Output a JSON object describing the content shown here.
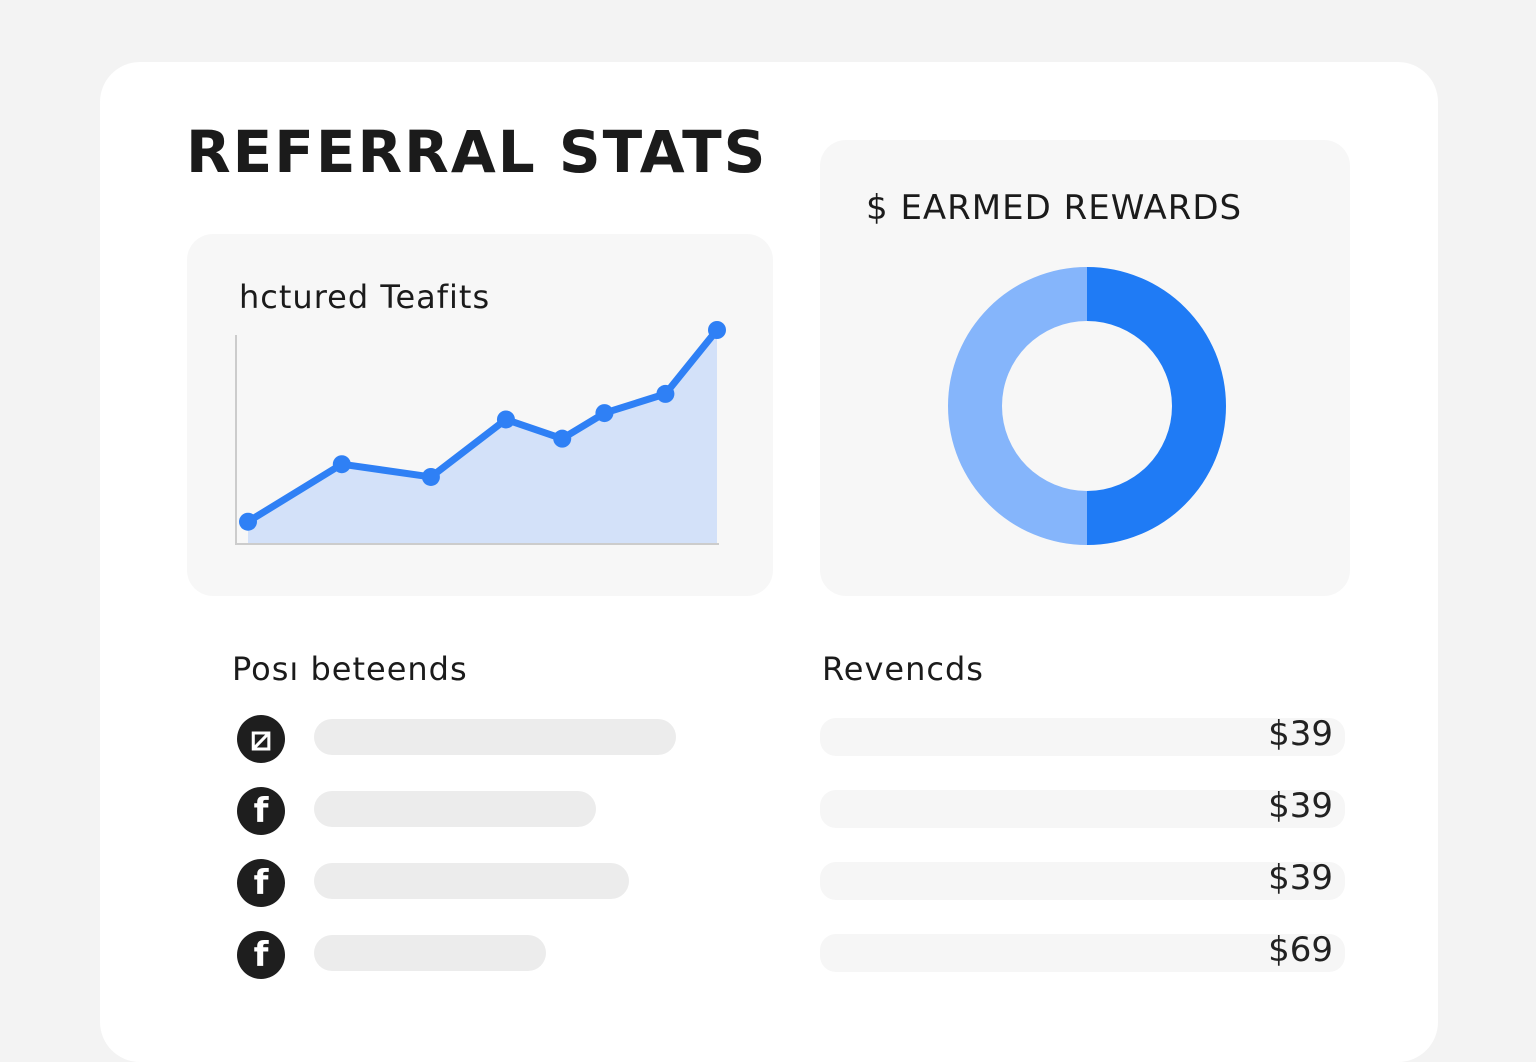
{
  "title": "REFERRAL STATS",
  "line_panel": {
    "title": "hctured Teafits"
  },
  "donut_panel": {
    "title": "$ EARMED REWARDS"
  },
  "chart_data": [
    {
      "type": "area",
      "title": "hctured Teafits",
      "x": [
        0,
        20,
        39,
        55,
        67,
        76,
        89,
        100
      ],
      "values": [
        10,
        37,
        31,
        58,
        49,
        61,
        70,
        100
      ],
      "ylim": [
        0,
        100
      ],
      "grid": false,
      "color": "#2f80f5",
      "fill": "#d3e1f9"
    },
    {
      "type": "pie",
      "title": "$ EARMED REWARDS",
      "donut": true,
      "values": [
        50,
        50
      ],
      "colors": [
        "#1f7bf5",
        "#85b5fb"
      ]
    }
  ],
  "posts": {
    "title": "Posı beteends",
    "items": [
      {
        "icon": "clipboard-icon",
        "fill": 1.0
      },
      {
        "icon": "facebook-icon",
        "fill": 0.78
      },
      {
        "icon": "facebook-icon",
        "fill": 0.87
      },
      {
        "icon": "facebook-icon",
        "fill": 0.64
      }
    ]
  },
  "rewards": {
    "title": "Revencds",
    "items": [
      {
        "value": "$39"
      },
      {
        "value": "$39"
      },
      {
        "value": "$39"
      },
      {
        "value": "$69"
      }
    ]
  }
}
